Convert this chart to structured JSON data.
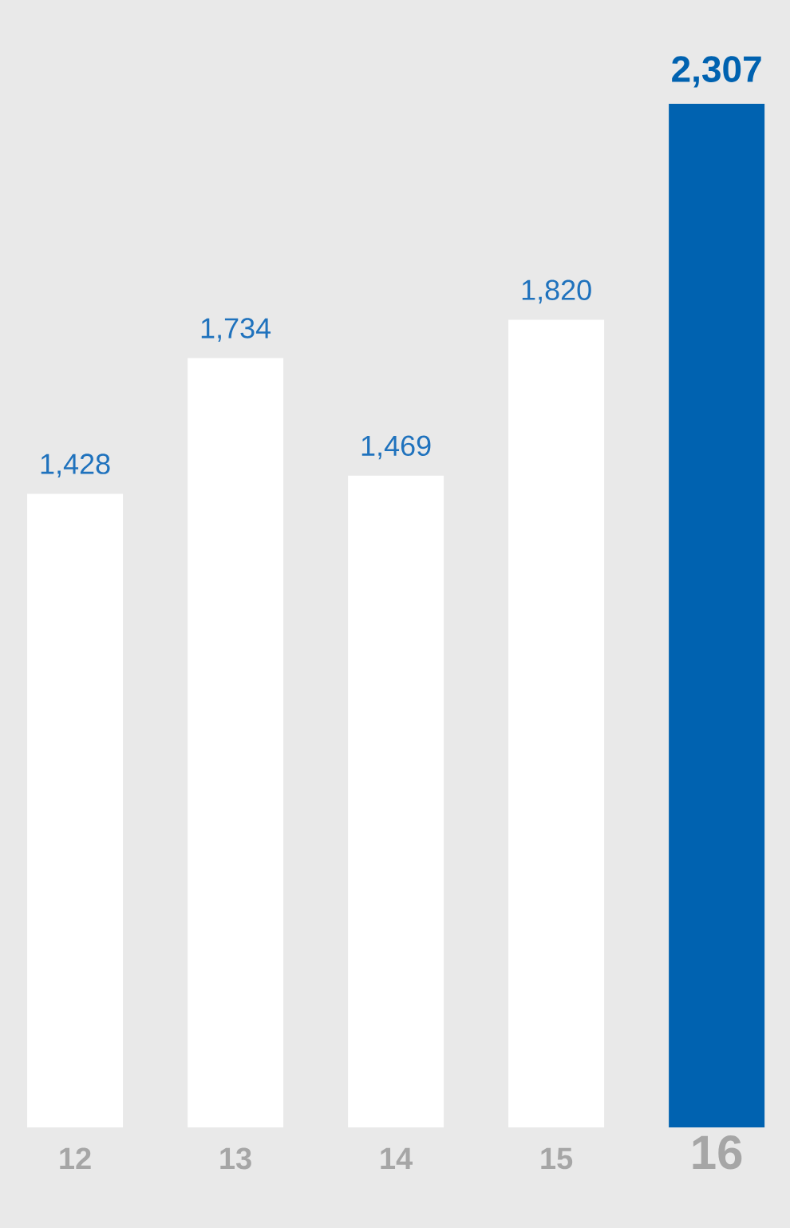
{
  "chart_data": {
    "type": "bar",
    "categories": [
      "12",
      "13",
      "14",
      "15",
      "16"
    ],
    "values": [
      1428,
      1734,
      1469,
      1820,
      2307
    ],
    "colors": [
      "#ffffff",
      "#ffffff",
      "#ffffff",
      "#ffffff",
      "#0062b0"
    ],
    "value_labels": [
      "1,428",
      "1,734",
      "1,469",
      "1,820",
      "2,307"
    ],
    "tick_labels": "x"
  }
}
